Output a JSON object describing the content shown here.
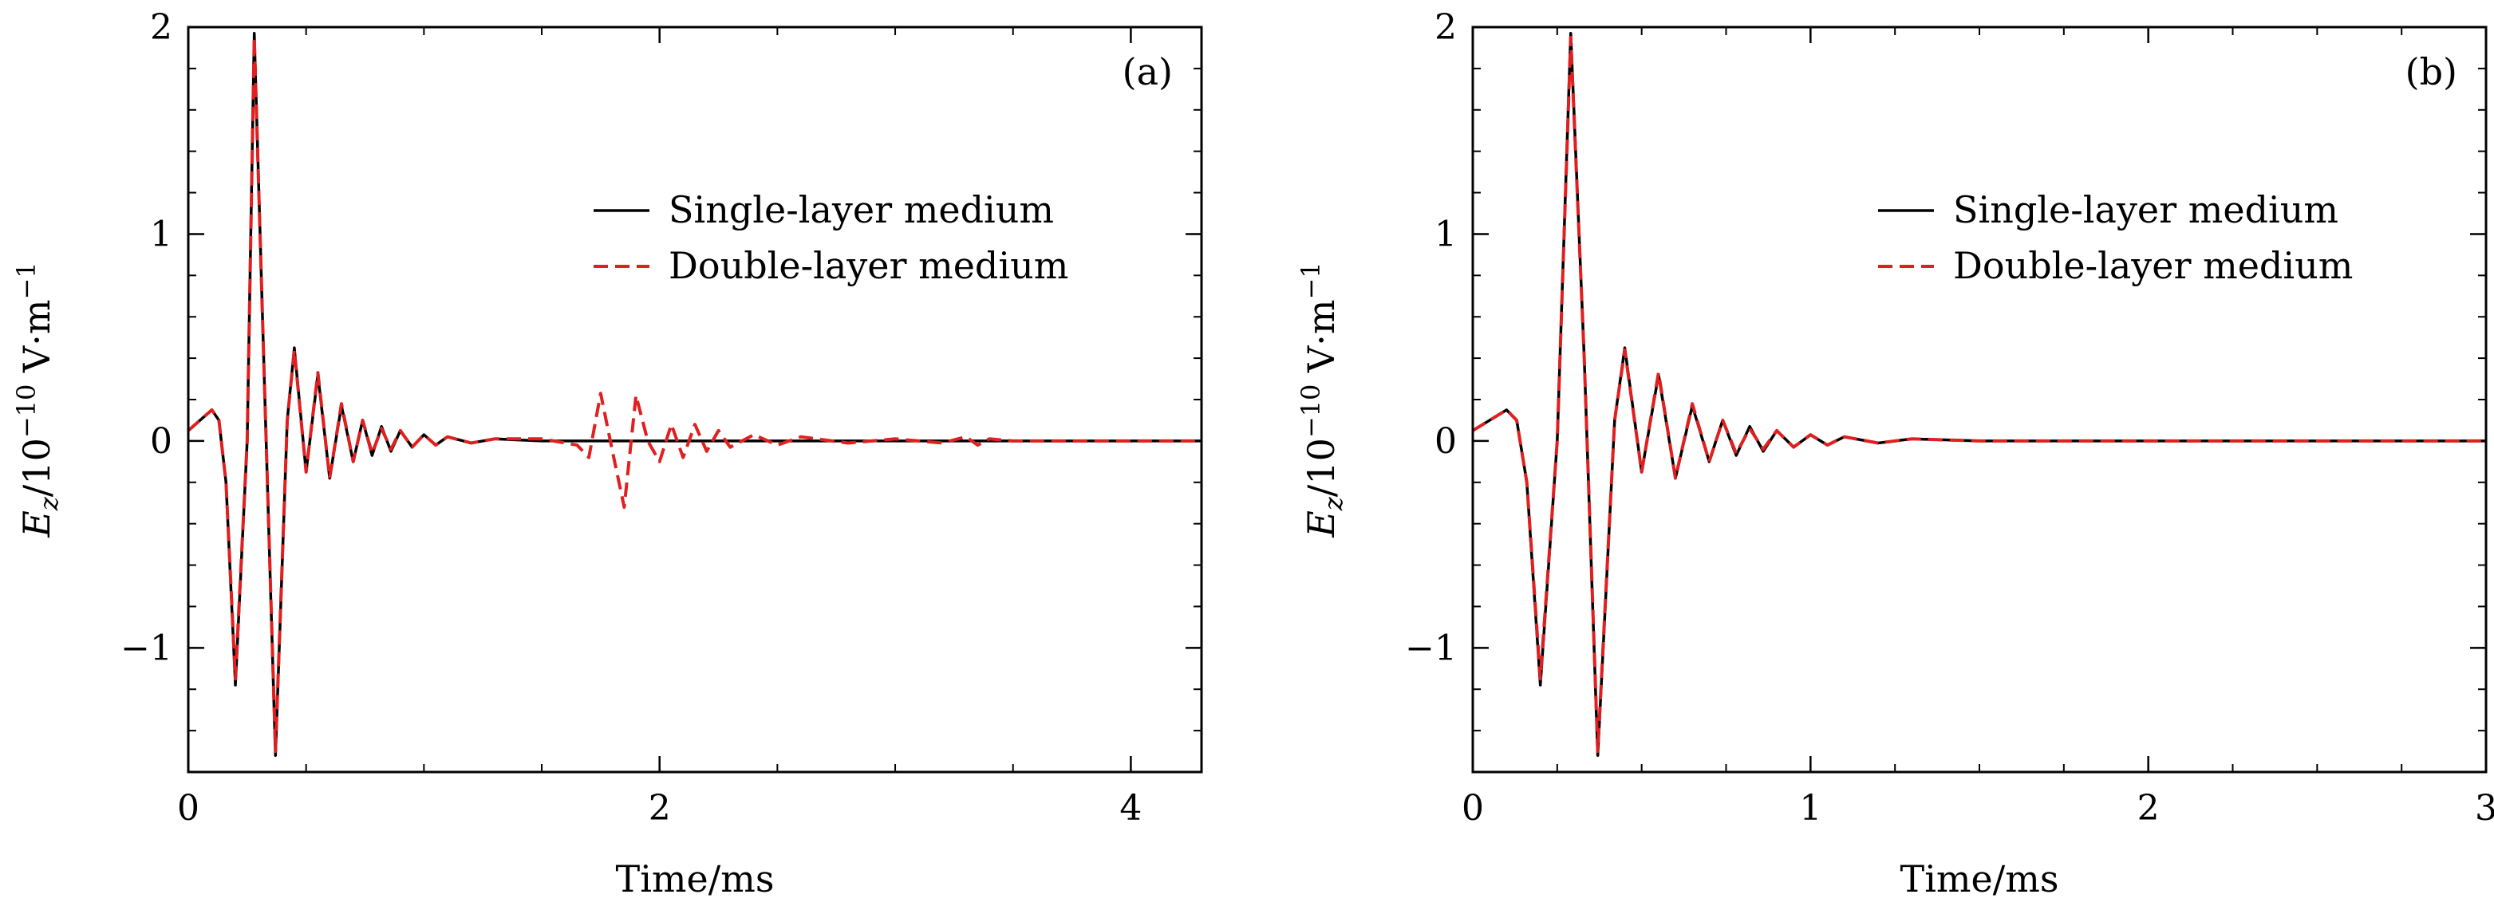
{
  "chart_data": [
    {
      "type": "line",
      "panel_label": "(a)",
      "xlabel": "Time/ms",
      "ylabel": "",
      "ylabel_parts": {
        "symbol": "E",
        "subscript": "z",
        "scale": "/10",
        "exponent": "−10",
        "unit": " V·m",
        "unit_exponent": "−1"
      },
      "xlim": [
        0,
        4.3
      ],
      "ylim": [
        -1.6,
        2.0
      ],
      "xticks": [
        0,
        2,
        4
      ],
      "xtick_labels": [
        "0",
        "2",
        "4"
      ],
      "yticks": [
        -1,
        0,
        1,
        2
      ],
      "ytick_labels": [
        "−1",
        "0",
        "1",
        "2"
      ],
      "legend": "right-middle",
      "grid": false,
      "series": [
        {
          "name": "Single-layer medium",
          "color": "#000000",
          "dash": "solid",
          "x": [
            0,
            0.05,
            0.1,
            0.13,
            0.16,
            0.2,
            0.25,
            0.28,
            0.32,
            0.37,
            0.42,
            0.45,
            0.5,
            0.55,
            0.6,
            0.65,
            0.7,
            0.74,
            0.78,
            0.82,
            0.86,
            0.9,
            0.95,
            1.0,
            1.05,
            1.1,
            1.2,
            1.3,
            1.5,
            2.0,
            3.0,
            4.3
          ],
          "y": [
            0.05,
            0.1,
            0.15,
            0.1,
            -0.2,
            -1.18,
            0.0,
            1.97,
            0.4,
            -1.52,
            0.1,
            0.45,
            -0.15,
            0.32,
            -0.18,
            0.17,
            -0.1,
            0.1,
            -0.07,
            0.07,
            -0.05,
            0.05,
            -0.03,
            0.03,
            -0.02,
            0.02,
            -0.01,
            0.01,
            0.0,
            0.0,
            0.0,
            0.0
          ]
        },
        {
          "name": "Double-layer medium",
          "color": "#e02020",
          "dash": "dashed",
          "x": [
            0,
            0.05,
            0.1,
            0.13,
            0.16,
            0.2,
            0.25,
            0.28,
            0.32,
            0.37,
            0.42,
            0.45,
            0.5,
            0.55,
            0.6,
            0.65,
            0.7,
            0.74,
            0.78,
            0.82,
            0.86,
            0.9,
            0.95,
            1.0,
            1.05,
            1.1,
            1.2,
            1.3,
            1.5,
            1.65,
            1.7,
            1.75,
            1.8,
            1.85,
            1.9,
            1.95,
            2.0,
            2.05,
            2.1,
            2.15,
            2.2,
            2.25,
            2.3,
            2.4,
            2.5,
            2.6,
            2.8,
            3.0,
            3.2,
            3.3,
            3.35,
            3.4,
            3.5,
            3.7,
            4.0,
            4.3
          ],
          "y": [
            0.05,
            0.1,
            0.15,
            0.1,
            -0.2,
            -1.15,
            0.0,
            1.95,
            0.4,
            -1.5,
            0.1,
            0.44,
            -0.15,
            0.33,
            -0.18,
            0.18,
            -0.1,
            0.1,
            -0.06,
            0.06,
            -0.04,
            0.05,
            -0.03,
            0.03,
            -0.02,
            0.02,
            -0.01,
            0.01,
            0.01,
            -0.02,
            -0.08,
            0.23,
            -0.05,
            -0.32,
            0.22,
            0.0,
            -0.1,
            0.08,
            -0.08,
            0.08,
            -0.05,
            0.05,
            -0.03,
            0.03,
            -0.02,
            0.02,
            -0.01,
            0.01,
            -0.01,
            0.02,
            -0.02,
            0.01,
            0.0,
            0.0,
            0.0,
            0.0
          ]
        }
      ]
    },
    {
      "type": "line",
      "panel_label": "(b)",
      "xlabel": "Time/ms",
      "ylabel": "",
      "ylabel_parts": {
        "symbol": "E",
        "subscript": "z",
        "scale": "/10",
        "exponent": "−10",
        "unit": " V·m",
        "unit_exponent": "−1"
      },
      "xlim": [
        0,
        3
      ],
      "ylim": [
        -1.6,
        2.0
      ],
      "xticks": [
        0,
        1,
        2,
        3
      ],
      "xtick_labels": [
        "0",
        "1",
        "2",
        "3"
      ],
      "yticks": [
        -1,
        0,
        1,
        2
      ],
      "ytick_labels": [
        "−1",
        "0",
        "1",
        "2"
      ],
      "legend": "right-middle",
      "grid": false,
      "series": [
        {
          "name": "Single-layer medium",
          "color": "#000000",
          "dash": "solid",
          "x": [
            0,
            0.05,
            0.1,
            0.13,
            0.16,
            0.2,
            0.25,
            0.29,
            0.33,
            0.37,
            0.42,
            0.45,
            0.5,
            0.55,
            0.6,
            0.65,
            0.7,
            0.74,
            0.78,
            0.82,
            0.86,
            0.9,
            0.95,
            1.0,
            1.05,
            1.1,
            1.2,
            1.3,
            1.5,
            2.0,
            3.0
          ],
          "y": [
            0.05,
            0.1,
            0.15,
            0.1,
            -0.2,
            -1.18,
            0.0,
            1.97,
            0.4,
            -1.52,
            0.1,
            0.45,
            -0.15,
            0.32,
            -0.18,
            0.17,
            -0.1,
            0.1,
            -0.07,
            0.07,
            -0.05,
            0.05,
            -0.03,
            0.03,
            -0.02,
            0.02,
            -0.01,
            0.01,
            0.0,
            0.0,
            0.0
          ]
        },
        {
          "name": "Double-layer medium",
          "color": "#e02020",
          "dash": "dashed",
          "x": [
            0,
            0.05,
            0.1,
            0.13,
            0.16,
            0.2,
            0.25,
            0.29,
            0.33,
            0.37,
            0.42,
            0.45,
            0.5,
            0.55,
            0.6,
            0.65,
            0.7,
            0.74,
            0.78,
            0.82,
            0.86,
            0.9,
            0.95,
            1.0,
            1.05,
            1.1,
            1.2,
            1.3,
            1.5,
            2.0,
            3.0
          ],
          "y": [
            0.05,
            0.1,
            0.15,
            0.1,
            -0.2,
            -1.15,
            0.0,
            1.95,
            0.4,
            -1.5,
            0.1,
            0.44,
            -0.15,
            0.33,
            -0.18,
            0.18,
            -0.1,
            0.1,
            -0.06,
            0.06,
            -0.04,
            0.05,
            -0.03,
            0.03,
            -0.02,
            0.02,
            -0.01,
            0.01,
            0.0,
            0.0,
            0.0
          ]
        }
      ]
    }
  ]
}
